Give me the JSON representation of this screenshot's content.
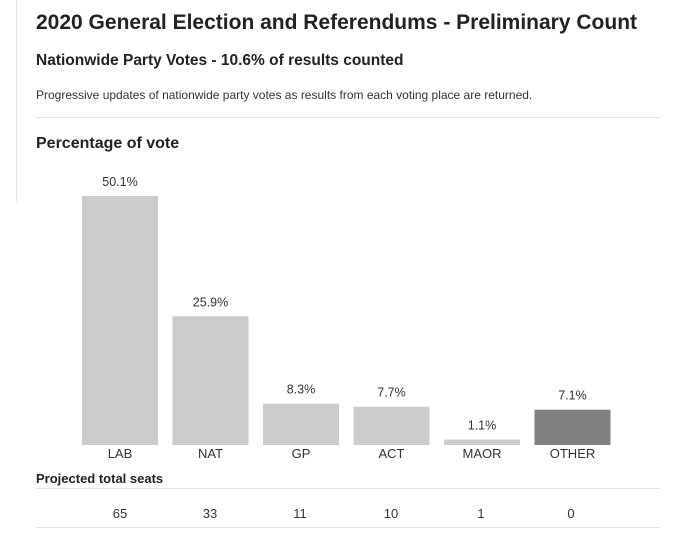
{
  "header": {
    "title": "2020 General Election and Referendums - Preliminary Count",
    "subtitle": "Nationwide Party Votes - 10.6% of results counted",
    "description": "Progressive updates of nationwide party votes as results from each voting place are returned."
  },
  "chart_heading": "Percentage of vote",
  "chart_data": {
    "type": "bar",
    "title": "Percentage of vote",
    "categories": [
      "LAB",
      "NAT",
      "GP",
      "ACT",
      "MAOR",
      "OTHER"
    ],
    "values": [
      50.1,
      25.9,
      8.3,
      7.7,
      1.1,
      7.1
    ],
    "value_labels": [
      "50.1%",
      "25.9%",
      "8.3%",
      "7.7%",
      "1.1%",
      "7.1%"
    ],
    "xlabel": "",
    "ylabel": "",
    "ylim": [
      0,
      50.1
    ],
    "bar_colors": [
      "#cccccc",
      "#cccccc",
      "#cccccc",
      "#cccccc",
      "#cccccc",
      "#808080"
    ]
  },
  "seats": {
    "heading": "Projected total seats",
    "values": [
      "65",
      "33",
      "11",
      "10",
      "1",
      "0"
    ]
  }
}
